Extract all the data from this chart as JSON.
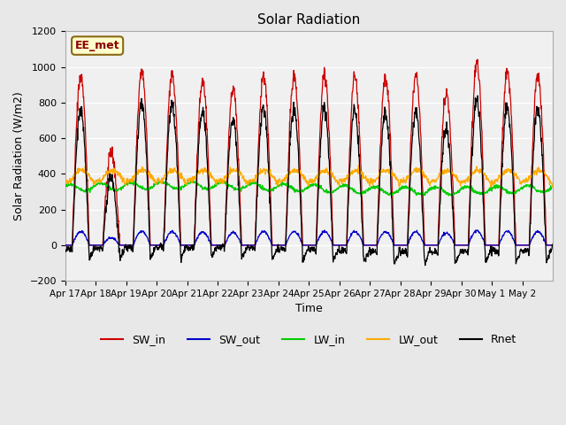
{
  "title": "Solar Radiation",
  "xlabel": "Time",
  "ylabel": "Solar Radiation (W/m2)",
  "ylim": [
    -200,
    1200
  ],
  "yticks": [
    -200,
    0,
    200,
    400,
    600,
    800,
    1000,
    1200
  ],
  "xtick_labels": [
    "Apr 17",
    "Apr 18",
    "Apr 19",
    "Apr 20",
    "Apr 21",
    "Apr 22",
    "Apr 23",
    "Apr 24",
    "Apr 25",
    "Apr 26",
    "Apr 27",
    "Apr 28",
    "Apr 29",
    "Apr 30",
    "May 1",
    "May 2"
  ],
  "legend_entries": [
    "SW_in",
    "SW_out",
    "LW_in",
    "LW_out",
    "Rnet"
  ],
  "colors": {
    "SW_in": "#cc0000",
    "SW_out": "#0000cc",
    "LW_in": "#00cc00",
    "LW_out": "#ffaa00",
    "Rnet": "#000000"
  },
  "annotation_text": "EE_met",
  "annotation_color": "#8B0000",
  "annotation_bg": "#ffffcc",
  "bg_color": "#e8e8e8",
  "plot_bg": "#f0f0f0",
  "n_days": 16,
  "peaks": [
    950,
    520,
    980,
    950,
    920,
    870,
    950,
    950,
    950,
    950,
    950,
    950,
    850,
    1020,
    980,
    950
  ]
}
